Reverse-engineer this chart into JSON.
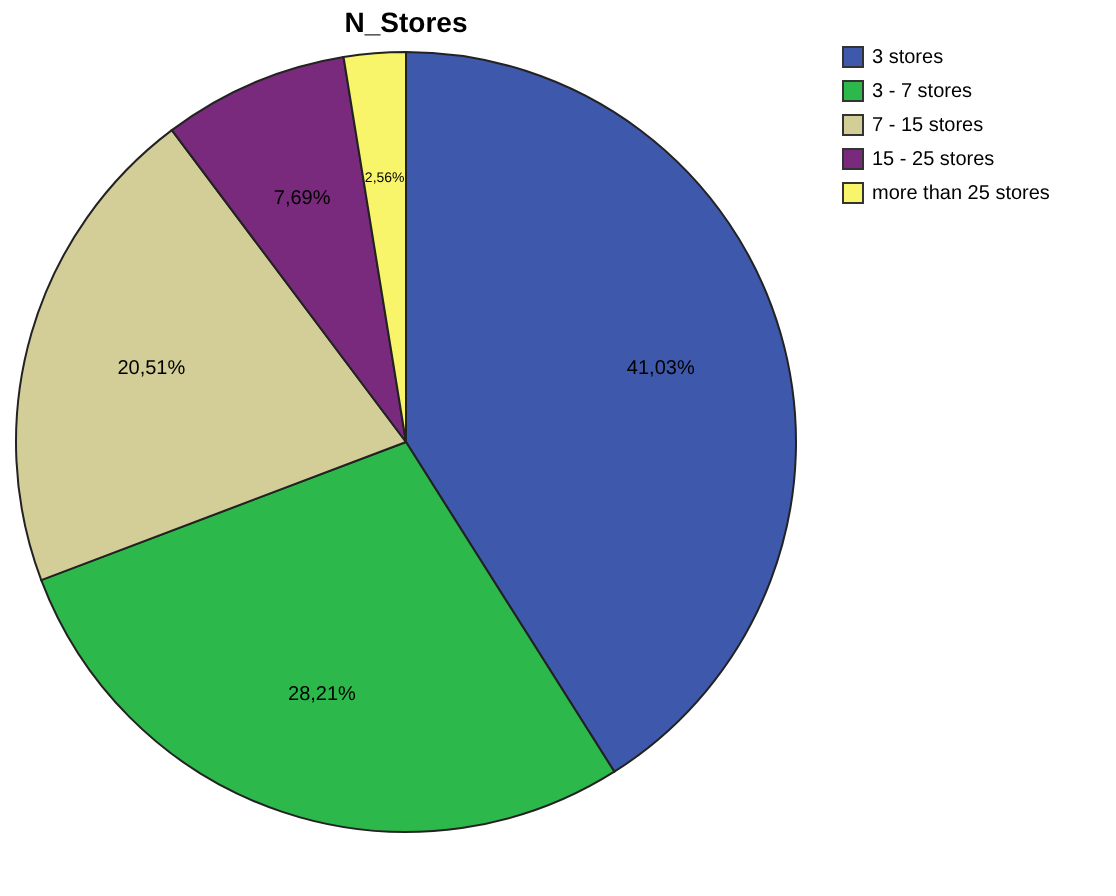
{
  "chart_data": {
    "type": "pie",
    "title": "N_Stores",
    "categories": [
      "3 stores",
      "3 - 7 stores",
      "7 - 15 stores",
      "15 - 25 stores",
      "more than 25 stores"
    ],
    "values": [
      41.03,
      28.21,
      20.51,
      7.69,
      2.56
    ],
    "value_labels": [
      "41,03%",
      "28,21%",
      "20,51%",
      "7,69%",
      "2,56%"
    ],
    "colors": [
      "#3e58ac",
      "#2db84b",
      "#d3ce97",
      "#7a2a7c",
      "#f8f56b"
    ],
    "legend": "top right"
  }
}
